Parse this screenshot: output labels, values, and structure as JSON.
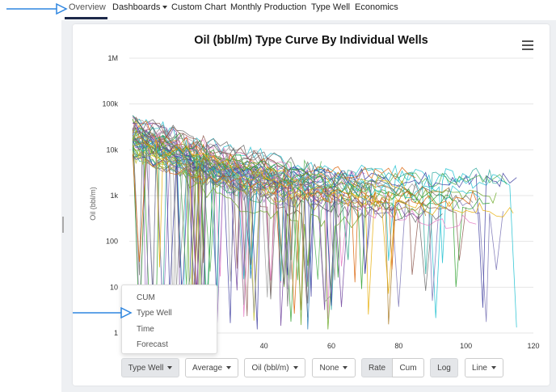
{
  "nav": {
    "items": [
      "Overview",
      "Dashboards",
      "Custom Chart",
      "Monthly Production",
      "Type Well",
      "Economics"
    ]
  },
  "chart": {
    "title": "Oil (bbl/m) Type Curve By Individual Wells"
  },
  "chart_data": {
    "type": "line",
    "title": "Oil (bbl/m) Type Curve By Individual Wells",
    "xlabel": "",
    "ylabel": "Oil (bbl/m)",
    "y_scale": "log",
    "ylim": [
      1,
      1000000
    ],
    "xlim": [
      0,
      120
    ],
    "y_ticks": [
      "1",
      "10",
      "100",
      "1k",
      "10k",
      "100k",
      "1M"
    ],
    "x_ticks": [
      "40",
      "60",
      "80",
      "100",
      "120"
    ],
    "grid": true,
    "legend": "none",
    "series_count": 60
  },
  "dropdown": {
    "items": [
      "CUM",
      "Type Well",
      "Time",
      "Forecast"
    ]
  },
  "controls": {
    "type_well": "Type Well",
    "average": "Average",
    "metric": "Oil (bbl/m)",
    "group": "None",
    "rate": "Rate",
    "cum": "Cum",
    "log": "Log",
    "line": "Line"
  },
  "colors": {
    "accent_arrow": "#2f86e0",
    "nav_underline": "#1e2a4a"
  }
}
